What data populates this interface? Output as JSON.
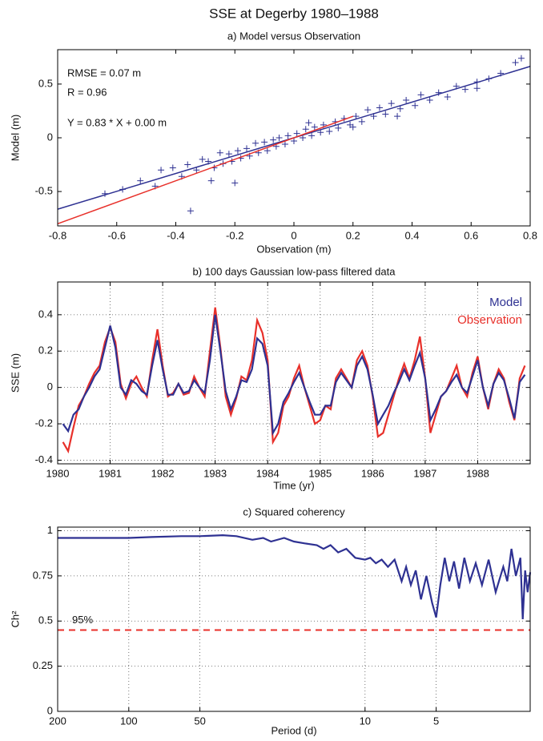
{
  "title": "SSE at Degerby 1980–1988",
  "chart_data": [
    {
      "type": "scatter",
      "title": "a) Model versus Observation",
      "xlabel": "Observation (m)",
      "ylabel": "Model (m)",
      "xlim": [
        -0.8,
        0.8
      ],
      "ylim": [
        -0.82,
        0.82
      ],
      "xticks": [
        -0.8,
        -0.6,
        -0.4,
        -0.2,
        0,
        0.2,
        0.4,
        0.6,
        0.8
      ],
      "yticks": [
        -0.5,
        0,
        0.5
      ],
      "grid": false,
      "points": {
        "color": "#2e3192",
        "x": [
          -0.64,
          -0.58,
          -0.52,
          -0.47,
          -0.45,
          -0.41,
          -0.38,
          -0.36,
          -0.33,
          -0.31,
          -0.29,
          -0.27,
          -0.25,
          -0.24,
          -0.22,
          -0.21,
          -0.19,
          -0.18,
          -0.16,
          -0.15,
          -0.13,
          -0.12,
          -0.1,
          -0.09,
          -0.07,
          -0.06,
          -0.05,
          -0.03,
          -0.02,
          0.0,
          0.01,
          0.03,
          0.04,
          0.06,
          0.07,
          0.09,
          0.1,
          0.12,
          0.14,
          0.15,
          0.17,
          0.19,
          0.21,
          0.23,
          0.25,
          0.27,
          0.29,
          0.31,
          0.33,
          0.36,
          0.38,
          0.41,
          0.43,
          0.46,
          0.49,
          0.52,
          0.55,
          0.58,
          0.62,
          0.66,
          0.7,
          0.75,
          0.77,
          -0.35,
          -0.2,
          0.62,
          0.2,
          -0.28,
          0.05,
          0.35
        ],
        "y": [
          -0.52,
          -0.48,
          -0.4,
          -0.45,
          -0.3,
          -0.28,
          -0.36,
          -0.25,
          -0.3,
          -0.2,
          -0.22,
          -0.28,
          -0.14,
          -0.24,
          -0.15,
          -0.22,
          -0.12,
          -0.19,
          -0.1,
          -0.17,
          -0.05,
          -0.14,
          -0.04,
          -0.12,
          -0.02,
          -0.08,
          0.0,
          -0.06,
          0.02,
          -0.03,
          0.04,
          0.0,
          0.08,
          0.02,
          0.1,
          0.05,
          0.12,
          0.06,
          0.15,
          0.09,
          0.18,
          0.12,
          0.2,
          0.15,
          0.26,
          0.2,
          0.28,
          0.22,
          0.32,
          0.27,
          0.35,
          0.3,
          0.4,
          0.35,
          0.42,
          0.38,
          0.48,
          0.45,
          0.52,
          0.55,
          0.6,
          0.7,
          0.74,
          -0.68,
          -0.42,
          0.46,
          0.1,
          -0.4,
          0.14,
          0.2
        ]
      },
      "lines": [
        {
          "color": "#2e3192",
          "x": [
            -0.8,
            0.8
          ],
          "y": [
            -0.664,
            0.664
          ]
        },
        {
          "color": "#e8302a",
          "x": [
            -0.8,
            0.2
          ],
          "y": [
            -0.8,
            0.2
          ]
        }
      ],
      "annotations": [
        "RMSE = 0.07 m",
        "R = 0.96",
        "Y = 0.83 * X + 0.00 m"
      ]
    },
    {
      "type": "line",
      "title": "b) 100 days Gaussian low-pass filtered data",
      "xlabel": "Time (yr)",
      "ylabel": "SSE (m)",
      "xlim": [
        1980,
        1989
      ],
      "ylim": [
        -0.42,
        0.58
      ],
      "xticks": [
        1980,
        1981,
        1982,
        1983,
        1984,
        1985,
        1986,
        1987,
        1988
      ],
      "yticks": [
        -0.4,
        -0.2,
        0,
        0.2,
        0.4
      ],
      "grid": true,
      "legend": "upper right",
      "x": [
        1980.1,
        1980.2,
        1980.3,
        1980.4,
        1980.5,
        1980.6,
        1980.7,
        1980.8,
        1980.9,
        1981.0,
        1981.1,
        1981.2,
        1981.3,
        1981.4,
        1981.5,
        1981.6,
        1981.7,
        1981.8,
        1981.9,
        1982.0,
        1982.1,
        1982.2,
        1982.3,
        1982.4,
        1982.5,
        1982.6,
        1982.7,
        1982.8,
        1982.9,
        1983.0,
        1983.1,
        1983.2,
        1983.3,
        1983.4,
        1983.5,
        1983.6,
        1983.7,
        1983.8,
        1983.9,
        1984.0,
        1984.1,
        1984.2,
        1984.3,
        1984.4,
        1984.5,
        1984.6,
        1984.7,
        1984.8,
        1984.9,
        1985.0,
        1985.1,
        1985.2,
        1985.3,
        1985.4,
        1985.5,
        1985.6,
        1985.7,
        1985.8,
        1985.9,
        1986.0,
        1986.1,
        1986.2,
        1986.3,
        1986.4,
        1986.5,
        1986.6,
        1986.7,
        1986.8,
        1986.9,
        1987.0,
        1987.1,
        1987.2,
        1987.3,
        1987.4,
        1987.5,
        1987.6,
        1987.7,
        1987.8,
        1987.9,
        1988.0,
        1988.1,
        1988.2,
        1988.3,
        1988.4,
        1988.5,
        1988.6,
        1988.7,
        1988.8,
        1988.9
      ],
      "series": [
        {
          "name": "Observation",
          "color": "#e8302a",
          "values": [
            -0.3,
            -0.35,
            -0.22,
            -0.1,
            -0.05,
            0.02,
            0.08,
            0.12,
            0.25,
            0.33,
            0.25,
            0.02,
            -0.06,
            0.02,
            0.06,
            0.0,
            -0.05,
            0.15,
            0.32,
            0.12,
            -0.05,
            -0.03,
            0.02,
            -0.04,
            -0.03,
            0.06,
            0.0,
            -0.05,
            0.2,
            0.44,
            0.22,
            -0.05,
            -0.15,
            -0.06,
            0.06,
            0.04,
            0.15,
            0.37,
            0.3,
            0.15,
            -0.3,
            -0.25,
            -0.1,
            -0.05,
            0.05,
            0.12,
            0.0,
            -0.1,
            -0.2,
            -0.18,
            -0.1,
            -0.12,
            0.05,
            0.1,
            0.05,
            0.0,
            0.15,
            0.2,
            0.12,
            -0.05,
            -0.27,
            -0.25,
            -0.15,
            -0.05,
            0.05,
            0.13,
            0.05,
            0.15,
            0.28,
            0.05,
            -0.25,
            -0.15,
            -0.05,
            -0.02,
            0.05,
            0.12,
            0.0,
            -0.05,
            0.08,
            0.17,
            0.0,
            -0.12,
            0.02,
            0.1,
            0.05,
            -0.08,
            -0.18,
            0.05,
            0.12
          ]
        },
        {
          "name": "Model",
          "color": "#2e3192",
          "values": [
            -0.2,
            -0.24,
            -0.15,
            -0.12,
            -0.05,
            0.0,
            0.06,
            0.1,
            0.22,
            0.34,
            0.22,
            0.0,
            -0.04,
            0.04,
            0.02,
            -0.02,
            -0.04,
            0.12,
            0.26,
            0.1,
            -0.04,
            -0.04,
            0.02,
            -0.03,
            -0.02,
            0.04,
            0.0,
            -0.03,
            0.15,
            0.4,
            0.2,
            -0.02,
            -0.12,
            -0.05,
            0.04,
            0.03,
            0.1,
            0.27,
            0.24,
            0.12,
            -0.25,
            -0.2,
            -0.08,
            -0.03,
            0.03,
            0.08,
            0.0,
            -0.08,
            -0.15,
            -0.15,
            -0.1,
            -0.1,
            0.03,
            0.08,
            0.04,
            0.0,
            0.12,
            0.17,
            0.1,
            -0.04,
            -0.2,
            -0.15,
            -0.1,
            -0.03,
            0.03,
            0.1,
            0.04,
            0.12,
            0.19,
            0.05,
            -0.18,
            -0.12,
            -0.05,
            -0.02,
            0.03,
            0.07,
            0.0,
            -0.03,
            0.06,
            0.15,
            0.0,
            -0.1,
            0.02,
            0.08,
            0.04,
            -0.06,
            -0.17,
            0.03,
            0.07
          ]
        }
      ]
    },
    {
      "type": "line",
      "title": "c) Squared coherency",
      "xlabel": "Period (d)",
      "ylabel": "Ch²",
      "xscale": "log",
      "xlim": [
        200,
        2
      ],
      "ylim": [
        0,
        1.02
      ],
      "xticks": [
        200,
        100,
        50,
        10,
        5
      ],
      "yticks": [
        0,
        0.25,
        0.5,
        0.75,
        1
      ],
      "grid": true,
      "x": [
        200,
        150,
        100,
        80,
        60,
        50,
        40,
        35,
        30,
        27,
        25,
        22,
        20,
        18,
        16,
        15,
        14,
        13,
        12,
        11,
        10,
        9.5,
        9,
        8.5,
        8,
        7.5,
        7,
        6.7,
        6.4,
        6.1,
        5.8,
        5.5,
        5.2,
        5,
        4.8,
        4.6,
        4.4,
        4.2,
        4,
        3.8,
        3.6,
        3.4,
        3.2,
        3.0,
        2.8,
        2.6,
        2.5,
        2.4,
        2.3,
        2.2,
        2.15,
        2.1,
        2.05,
        2.0
      ],
      "series": [
        {
          "color": "#2e3192",
          "values": [
            0.96,
            0.96,
            0.96,
            0.965,
            0.97,
            0.97,
            0.975,
            0.97,
            0.95,
            0.96,
            0.94,
            0.96,
            0.94,
            0.93,
            0.92,
            0.9,
            0.92,
            0.88,
            0.9,
            0.85,
            0.84,
            0.85,
            0.82,
            0.84,
            0.8,
            0.84,
            0.72,
            0.8,
            0.7,
            0.78,
            0.62,
            0.75,
            0.6,
            0.52,
            0.7,
            0.85,
            0.72,
            0.83,
            0.68,
            0.85,
            0.72,
            0.82,
            0.7,
            0.84,
            0.66,
            0.8,
            0.72,
            0.9,
            0.75,
            0.85,
            0.51,
            0.78,
            0.66,
            0.77
          ]
        }
      ],
      "threshold": {
        "value": 0.45,
        "label": "95%",
        "color": "#e8302a"
      }
    }
  ]
}
